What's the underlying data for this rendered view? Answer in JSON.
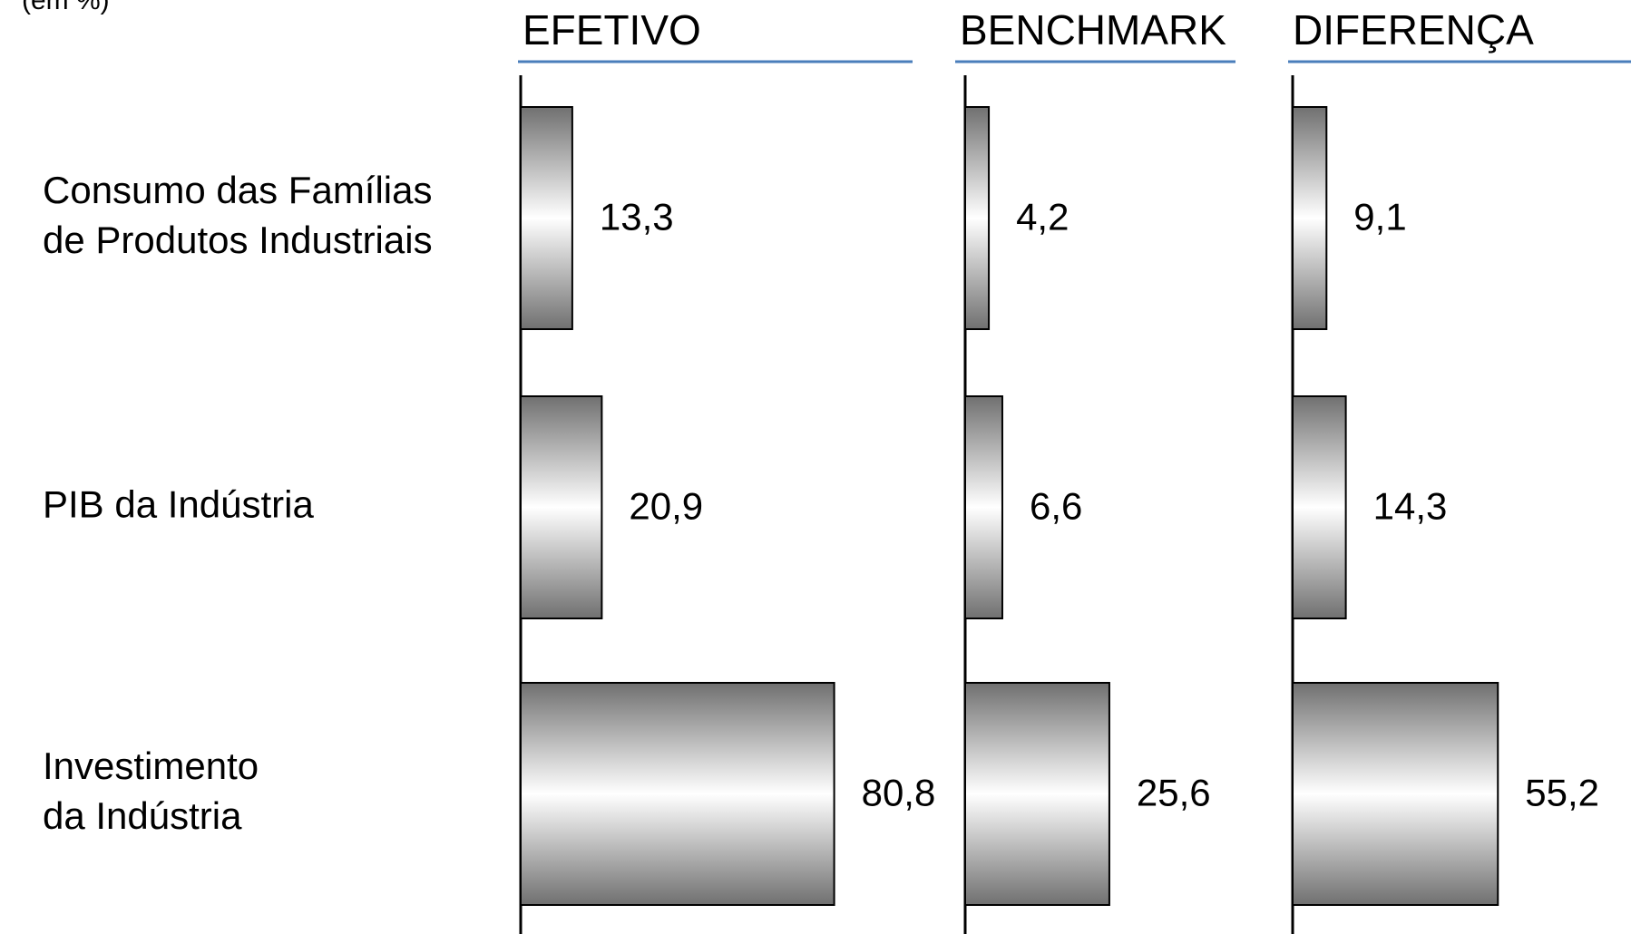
{
  "subtitle": "(em %)",
  "categories": [
    [
      "Consumo das Famílias",
      "de Produtos Industriais"
    ],
    [
      "PIB da Indústria"
    ],
    [
      "Investimento",
      "da Indústria"
    ]
  ],
  "chart_data": [
    {
      "type": "bar",
      "title": "EFETIVO",
      "values": [
        13.3,
        20.9,
        80.8
      ],
      "value_labels": [
        "13,3",
        "20,9",
        "80,8"
      ],
      "xlim": [
        0,
        101
      ],
      "color": "#707070"
    },
    {
      "type": "bar",
      "title": "BENCHMARK",
      "values": [
        4.2,
        6.6,
        25.6
      ],
      "value_labels": [
        "4,2",
        "6,6",
        "25,6"
      ],
      "xlim": [
        0,
        48
      ],
      "color": "#707070"
    },
    {
      "type": "bar",
      "title": "DIFERENÇA",
      "values": [
        9.1,
        14.3,
        55.2
      ],
      "value_labels": [
        "9,1",
        "14,3",
        "55,2"
      ],
      "xlim": [
        0,
        91
      ],
      "color": "#707070"
    }
  ]
}
